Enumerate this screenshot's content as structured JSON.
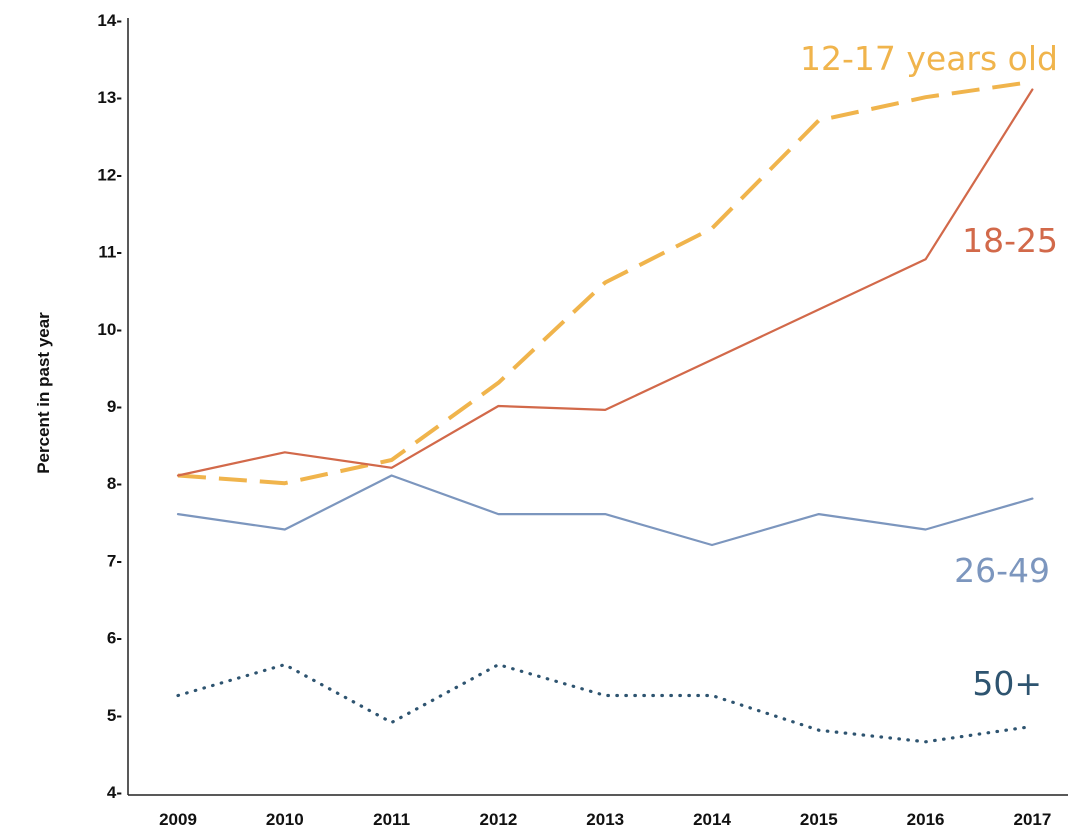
{
  "chart_data": {
    "type": "line",
    "title": "",
    "xlabel": "",
    "ylabel": "Percent in past year",
    "x": [
      "2009",
      "2010",
      "2011",
      "2012",
      "2013",
      "2014",
      "2015",
      "2016",
      "2017"
    ],
    "ylim": [
      4,
      14
    ],
    "yticks": [
      "4-",
      "5-",
      "6-",
      "7-",
      "8-",
      "9-",
      "10-",
      "11-",
      "12-",
      "13-",
      "14-"
    ],
    "grid": false,
    "legend": "none; series labelled directly on the chart",
    "series": [
      {
        "name": "12-17 years old",
        "values": [
          8.1,
          8.0,
          8.3,
          9.3,
          10.6,
          11.3,
          12.7,
          13.0,
          13.2
        ],
        "color": "#F0B44C",
        "style": "dashed"
      },
      {
        "name": "18-25",
        "values": [
          8.1,
          8.4,
          8.2,
          9.0,
          8.95,
          9.6,
          10.25,
          10.9,
          13.1
        ],
        "color": "#D2694A",
        "style": "solid"
      },
      {
        "name": "26-49",
        "values": [
          7.6,
          7.4,
          8.1,
          7.6,
          7.6,
          7.2,
          7.6,
          7.4,
          7.8
        ],
        "color": "#7C96BE",
        "style": "solid"
      },
      {
        "name": "50+",
        "values": [
          5.25,
          5.65,
          4.9,
          5.65,
          5.25,
          5.25,
          4.8,
          4.65,
          4.85
        ],
        "color": "#2E5470",
        "style": "dotted"
      }
    ]
  }
}
